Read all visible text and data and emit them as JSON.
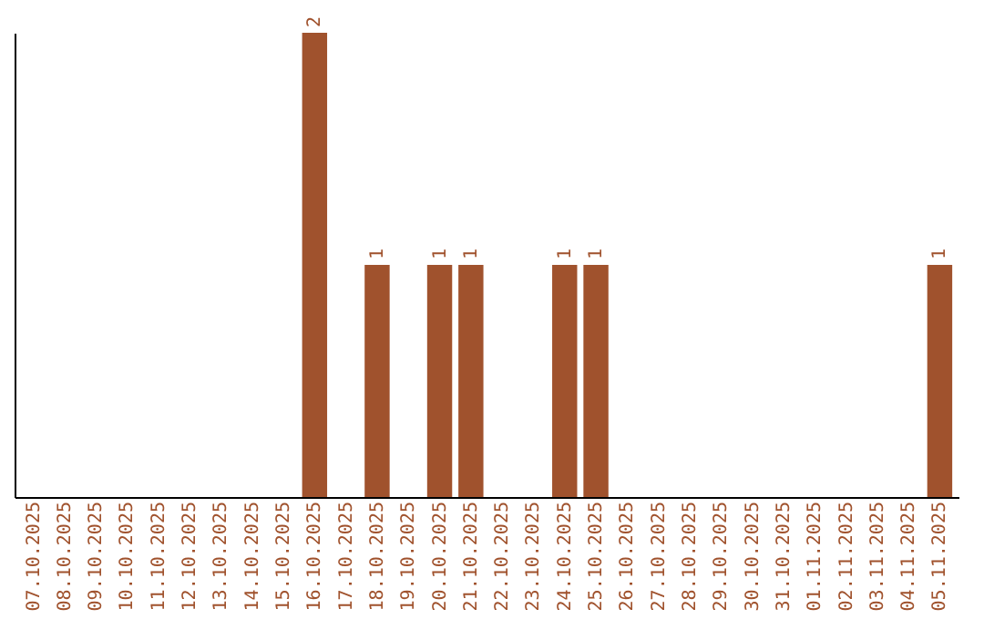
{
  "chart_data": {
    "type": "bar",
    "categories": [
      "07.10.2025",
      "08.10.2025",
      "09.10.2025",
      "10.10.2025",
      "11.10.2025",
      "12.10.2025",
      "13.10.2025",
      "14.10.2025",
      "15.10.2025",
      "16.10.2025",
      "17.10.2025",
      "18.10.2025",
      "19.10.2025",
      "20.10.2025",
      "21.10.2025",
      "22.10.2025",
      "23.10.2025",
      "24.10.2025",
      "25.10.2025",
      "26.10.2025",
      "27.10.2025",
      "28.10.2025",
      "29.10.2025",
      "30.10.2025",
      "31.10.2025",
      "01.11.2025",
      "02.11.2025",
      "03.11.2025",
      "04.11.2025",
      "05.11.2025"
    ],
    "values": [
      0,
      0,
      0,
      0,
      0,
      0,
      0,
      0,
      0,
      2,
      0,
      1,
      0,
      1,
      1,
      0,
      0,
      1,
      1,
      0,
      0,
      0,
      0,
      0,
      0,
      0,
      0,
      0,
      0,
      1
    ],
    "value_labels": [
      null,
      null,
      null,
      null,
      null,
      null,
      null,
      null,
      null,
      "2",
      null,
      "1",
      null,
      "1",
      "1",
      null,
      null,
      "1",
      "1",
      null,
      null,
      null,
      null,
      null,
      null,
      null,
      null,
      null,
      null,
      "1"
    ],
    "color": "#a0522d",
    "ylim": [
      0,
      2
    ],
    "tick_labels": "x",
    "grid": false
  }
}
